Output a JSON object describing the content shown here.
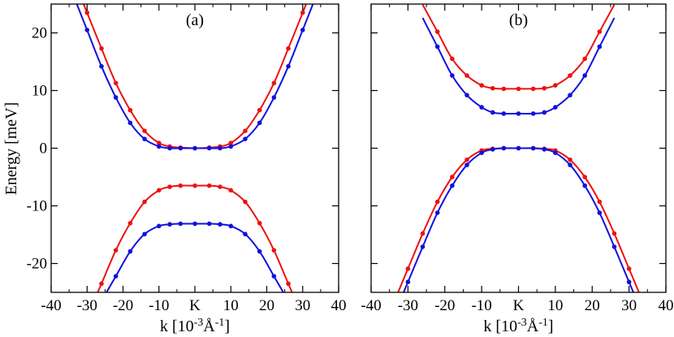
{
  "colors": {
    "series1": "#ee1111",
    "series2": "#1111dd",
    "axis": "#000000"
  },
  "chart_data": [
    {
      "type": "line",
      "panel_label": "(a)",
      "xlabel": "k [10",
      "xlabel_exp": "-3",
      "xlabel_mid": "Å",
      "xlabel_exp2": "-1",
      "xlabel_end": "]",
      "ylabel": "Energy [meV]",
      "xlim": [
        -40,
        40
      ],
      "ylim": [
        -25,
        25
      ],
      "x_ticks": [
        -40,
        -30,
        -20,
        -10,
        0,
        10,
        20,
        30,
        40
      ],
      "x_tick_labels": [
        "-40",
        "-30",
        "-20",
        "-10",
        "K",
        "10",
        "20",
        "30",
        "40"
      ],
      "y_ticks": [
        -20,
        -10,
        0,
        10,
        20
      ],
      "y_tick_labels": [
        "-20",
        "-10",
        "0",
        "10",
        "20"
      ],
      "series": [
        {
          "color_key": "series1",
          "x": [
            -30,
            -26,
            -22,
            -18,
            -14,
            -10,
            -7,
            -4,
            0,
            4,
            7,
            10,
            14,
            18,
            22,
            26,
            30
          ],
          "values": [
            23.5,
            17.3,
            11.3,
            6.6,
            3.0,
            0.9,
            0.3,
            0.1,
            0,
            0.1,
            0.3,
            0.9,
            3.0,
            6.6,
            11.3,
            17.3,
            23.5
          ]
        },
        {
          "color_key": "series2",
          "x": [
            -30,
            -26,
            -22,
            -18,
            -14,
            -10,
            -7,
            -4,
            0,
            4,
            7,
            10,
            14,
            18,
            22,
            26,
            30
          ],
          "values": [
            20.5,
            14.2,
            8.8,
            4.4,
            1.6,
            0.3,
            0.0,
            0.0,
            0,
            0.0,
            0.0,
            0.3,
            1.6,
            4.4,
            8.8,
            14.2,
            20.5
          ]
        },
        {
          "color_key": "series1",
          "x": [
            -26,
            -22,
            -18,
            -14,
            -10,
            -7,
            -4,
            0,
            4,
            7,
            10,
            14,
            18,
            22,
            26
          ],
          "values": [
            -23.5,
            -17.7,
            -13.0,
            -9.3,
            -7.3,
            -6.7,
            -6.5,
            -6.5,
            -6.5,
            -6.7,
            -7.3,
            -9.3,
            -13.0,
            -17.7,
            -23.5
          ]
        },
        {
          "color_key": "series2",
          "x": [
            -22,
            -18,
            -14,
            -10,
            -7,
            -4,
            0,
            4,
            7,
            10,
            14,
            18,
            22
          ],
          "values": [
            -22.2,
            -17.9,
            -14.9,
            -13.5,
            -13.2,
            -13.1,
            -13.1,
            -13.1,
            -13.2,
            -13.5,
            -14.9,
            -17.9,
            -22.2
          ]
        }
      ]
    },
    {
      "type": "line",
      "panel_label": "(b)",
      "xlabel": "k [10",
      "xlabel_exp": "-3",
      "xlabel_mid": "Å",
      "xlabel_exp2": "-1",
      "xlabel_end": "]",
      "ylabel": "",
      "xlim": [
        -40,
        40
      ],
      "ylim": [
        -25,
        25
      ],
      "x_ticks": [
        -40,
        -30,
        -20,
        -10,
        0,
        10,
        20,
        30,
        40
      ],
      "x_tick_labels": [
        "-40",
        "-30",
        "-20",
        "-10",
        "K",
        "10",
        "20",
        "30",
        "40"
      ],
      "y_ticks": [
        -20,
        -10,
        0,
        10,
        20
      ],
      "y_tick_labels": [],
      "series": [
        {
          "color_key": "series1",
          "x": [
            -22,
            -18,
            -14,
            -10,
            -7,
            -4,
            0,
            4,
            7,
            10,
            14,
            18,
            22
          ],
          "values": [
            20.2,
            15.5,
            12.6,
            10.9,
            10.4,
            10.3,
            10.3,
            10.3,
            10.4,
            10.9,
            12.6,
            15.5,
            20.2
          ]
        },
        {
          "color_key": "series2",
          "x": [
            -22,
            -18,
            -14,
            -10,
            -7,
            -4,
            0,
            4,
            7,
            10,
            14,
            18,
            22
          ],
          "values": [
            17.6,
            12.6,
            9.2,
            7.1,
            6.2,
            6.0,
            6.0,
            6.0,
            6.2,
            7.1,
            9.2,
            12.6,
            17.6
          ]
        },
        {
          "color_key": "series1",
          "x": [
            -30,
            -26,
            -22,
            -18,
            -14,
            -10,
            -7,
            -4,
            0,
            4,
            7,
            10,
            14,
            18,
            22,
            26,
            30
          ],
          "values": [
            -20.9,
            -14.8,
            -9.3,
            -5.0,
            -2.0,
            -0.4,
            -0.1,
            0.0,
            0.0,
            0.0,
            -0.1,
            -0.4,
            -2.0,
            -5.0,
            -9.3,
            -14.8,
            -20.9
          ]
        },
        {
          "color_key": "series2",
          "x": [
            -30,
            -26,
            -22,
            -18,
            -14,
            -10,
            -7,
            -4,
            0,
            4,
            7,
            10,
            14,
            18,
            22,
            26,
            30
          ],
          "values": [
            -23.2,
            -17.1,
            -11.2,
            -6.5,
            -2.9,
            -0.8,
            -0.2,
            0.0,
            0.0,
            0.0,
            -0.2,
            -0.8,
            -2.9,
            -6.5,
            -11.2,
            -17.1,
            -23.2
          ]
        }
      ]
    }
  ]
}
